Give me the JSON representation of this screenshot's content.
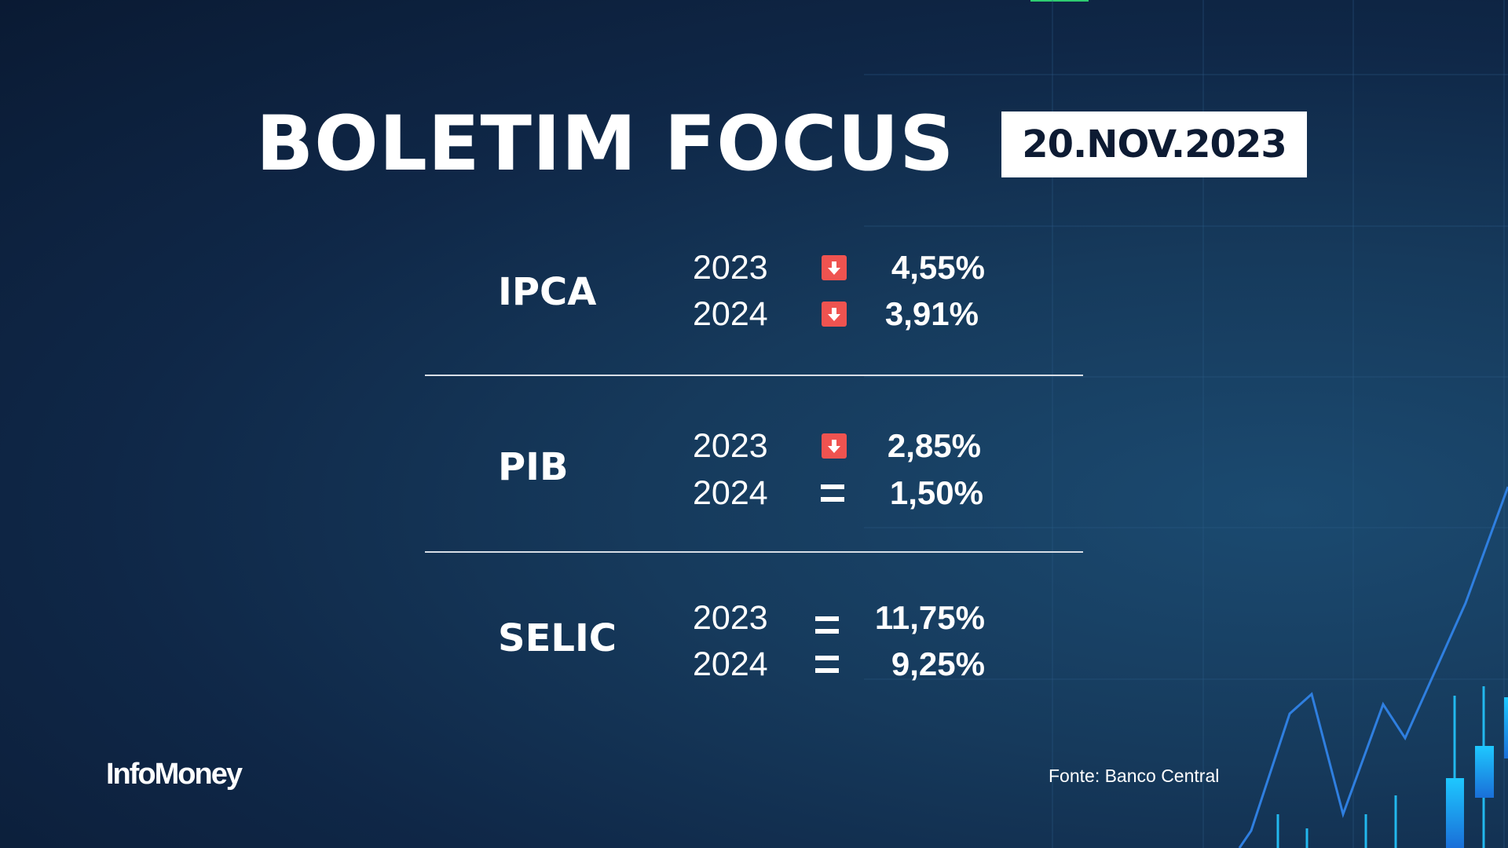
{
  "header": {
    "title": "BOLETIM FOCUS",
    "date": "20.NOV.2023"
  },
  "indicators": [
    {
      "name": "IPCA",
      "rows": [
        {
          "year": "2023",
          "trend": "down",
          "value": "4,55%"
        },
        {
          "year": "2024",
          "trend": "down",
          "value": "3,91%"
        }
      ]
    },
    {
      "name": "PIB",
      "rows": [
        {
          "year": "2023",
          "trend": "down",
          "value": "2,85%"
        },
        {
          "year": "2024",
          "trend": "equal",
          "value": "1,50%"
        }
      ]
    },
    {
      "name": "SELIC",
      "rows": [
        {
          "year": "2023",
          "trend": "equal",
          "value": "11,75%"
        },
        {
          "year": "2024",
          "trend": "equal",
          "value": "9,25%"
        }
      ]
    }
  ],
  "footer": {
    "logo": "InfoMoney",
    "source": "Fonte: Banco Central"
  },
  "colors": {
    "down": "#ef5350",
    "accent": "#2f7fe0"
  }
}
